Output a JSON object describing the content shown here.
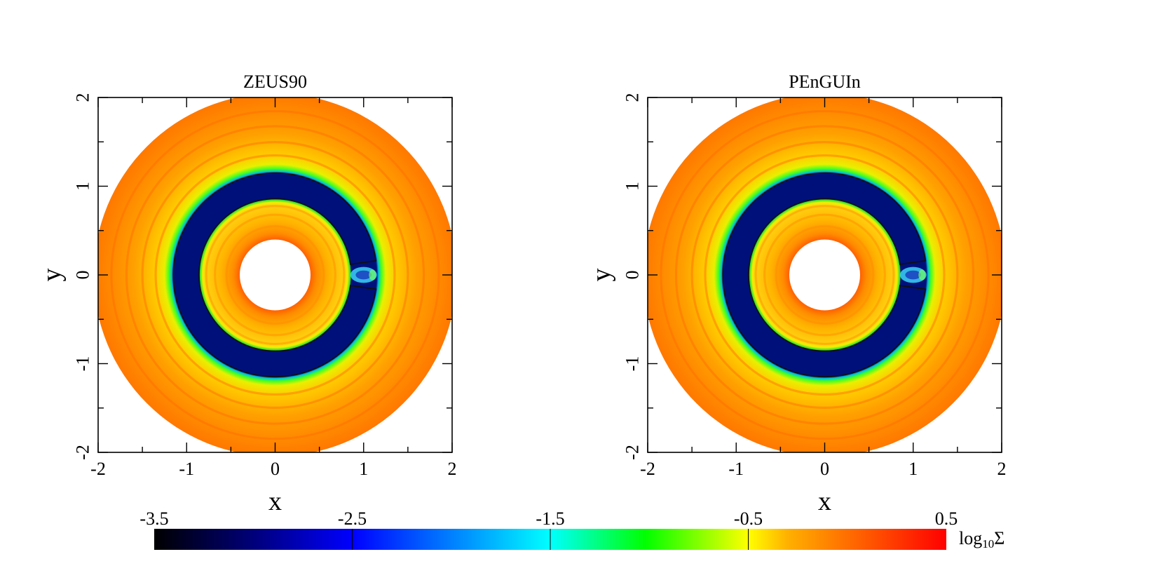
{
  "chart_data": [
    {
      "type": "heatmap",
      "title": "ZEUS90",
      "xlabel": "x",
      "ylabel": "y",
      "xlim": [
        -2,
        2
      ],
      "ylim": [
        -2,
        2
      ],
      "xticks": [
        "-2",
        "-1",
        "0",
        "1",
        "2"
      ],
      "yticks": [
        "-2",
        "-1",
        "0",
        "1",
        "2"
      ],
      "field": {
        "inner_hole_radius": 0.4,
        "outer_radius": 2.05,
        "gap_inner_radius": 0.86,
        "gap_outer_radius": 1.15,
        "planet_azimuth_deg": 0,
        "planet_position": [
          1.0,
          0.0
        ],
        "gap_log10_sigma": -2.8,
        "disk_log10_sigma_range": [
          -0.5,
          0.4
        ]
      }
    },
    {
      "type": "heatmap",
      "title": "PEnGUIn",
      "xlabel": "x",
      "ylabel": "y",
      "xlim": [
        -2,
        2
      ],
      "ylim": [
        -2,
        2
      ],
      "xticks": [
        "-2",
        "-1",
        "0",
        "1",
        "2"
      ],
      "yticks": [
        "-2",
        "-1",
        "0",
        "1",
        "2"
      ],
      "field": {
        "inner_hole_radius": 0.4,
        "outer_radius": 2.05,
        "gap_inner_radius": 0.86,
        "gap_outer_radius": 1.15,
        "planet_azimuth_deg": 0,
        "planet_position": [
          1.0,
          0.0
        ],
        "gap_log10_sigma": -2.8,
        "disk_log10_sigma_range": [
          -0.5,
          0.4
        ]
      }
    }
  ],
  "colorbar": {
    "label_main": "log",
    "label_sub": "10",
    "label_sym": "Σ",
    "range": [
      -3.5,
      0.5
    ],
    "ticks": [
      "-3.5",
      "-2.5",
      "-1.5",
      "-0.5",
      "0.5"
    ],
    "colors": [
      "#000000",
      "#00007a",
      "#0000ff",
      "#00ffff",
      "#00ff00",
      "#ffff00",
      "#ffa500",
      "#ff0000"
    ]
  }
}
